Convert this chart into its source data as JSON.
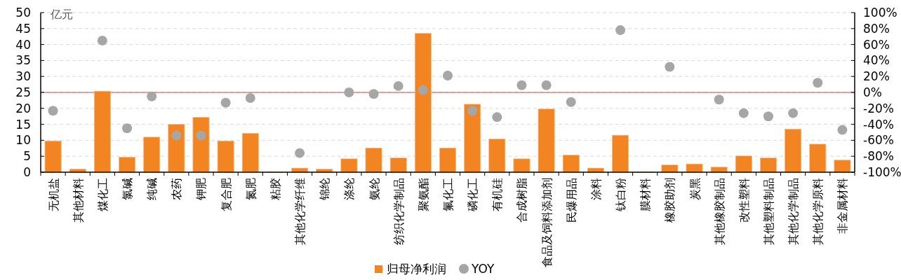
{
  "chart_data": {
    "type": "bar",
    "ylabel": "亿元",
    "categories": [
      "无机盐",
      "其他材料",
      "煤化工",
      "氯碱",
      "纯碱",
      "农药",
      "钾肥",
      "复合肥",
      "氮肥",
      "粘胶",
      "其他化学纤维",
      "锦纶",
      "涤纶",
      "氨纶",
      "纺织化学制品",
      "聚氨酯",
      "氟化工",
      "磷化工",
      "有机硅",
      "合成树脂",
      "食品及饲料添加剂",
      "民爆用品",
      "涂料",
      "钛白粉",
      "膜材料",
      "橡胶助剂",
      "炭黑",
      "其他橡胶制品",
      "改性塑料",
      "其他塑料制品",
      "其他化学制品",
      "其他化学原料",
      "非金属材料"
    ],
    "series": [
      {
        "name": "归母净利润",
        "color": "#f28522",
        "values": [
          9.8,
          1.0,
          25.4,
          4.7,
          11.0,
          15.0,
          17.2,
          9.8,
          12.2,
          0,
          1.3,
          1.0,
          4.2,
          7.6,
          4.5,
          43.5,
          7.6,
          21.3,
          10.4,
          4.2,
          19.8,
          5.4,
          1.3,
          11.6,
          0,
          2.3,
          2.6,
          1.6,
          5.1,
          4.5,
          13.5,
          8.8,
          3.8
        ]
      },
      {
        "name": "YOY",
        "type": "scatter",
        "axis": "y2",
        "color": "#a6a6a6",
        "marker": "circle",
        "values": [
          -23,
          null,
          65,
          -45,
          -5,
          -54,
          -54,
          -13,
          -7,
          null,
          -76,
          null,
          0,
          -2,
          8,
          3,
          21,
          -23,
          -31,
          9,
          9,
          -12,
          null,
          78,
          null,
          32,
          null,
          -9,
          -26,
          -30,
          -26,
          12,
          -47
        ]
      }
    ],
    "ylim": [
      0,
      50
    ],
    "yticks": [
      0,
      5,
      10,
      15,
      20,
      25,
      30,
      35,
      40,
      45,
      50
    ],
    "y2lim": [
      -100,
      100
    ],
    "y2ticks": [
      {
        "value": -100,
        "label": "-100%"
      },
      {
        "value": -80,
        "label": "-80%"
      },
      {
        "value": -60,
        "label": "-60%"
      },
      {
        "value": -40,
        "label": "-40%"
      },
      {
        "value": -20,
        "label": "-20%"
      },
      {
        "value": 0,
        "label": "0%"
      },
      {
        "value": 20,
        "label": "20%"
      },
      {
        "value": 40,
        "label": "40%"
      },
      {
        "value": 60,
        "label": "60%"
      },
      {
        "value": 80,
        "label": "80%"
      },
      {
        "value": 100,
        "label": "100%"
      }
    ],
    "ref_lines": [
      {
        "axis": "y2",
        "value": 0,
        "color": "#c0504d"
      }
    ],
    "grid": "y",
    "legend": "bottom"
  }
}
